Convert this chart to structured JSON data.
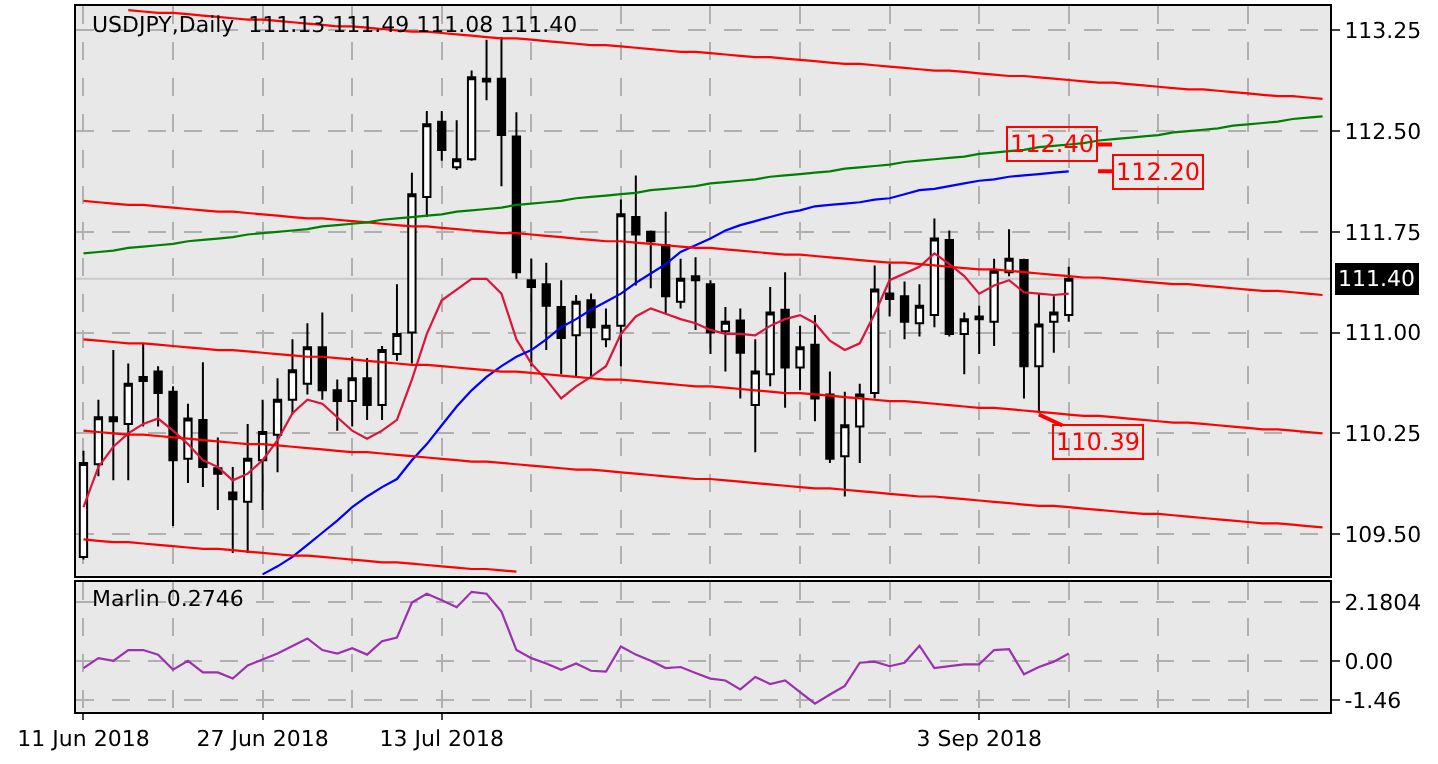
{
  "chart_data": [
    {
      "type": "candlestick",
      "title": "USDJPY,Daily  111.13 111.49 111.08 111.40",
      "categories": [
        "11 Jun 2018",
        null,
        null,
        null,
        null,
        null,
        null,
        null,
        null,
        null,
        null,
        null,
        "27 Jun 2018",
        null,
        null,
        null,
        null,
        null,
        null,
        null,
        null,
        null,
        null,
        null,
        "13 Jul 2018",
        null,
        null,
        null,
        null,
        null,
        null,
        null,
        null,
        null,
        null,
        null,
        null,
        null,
        null,
        null,
        null,
        null,
        null,
        null,
        null,
        null,
        null,
        null,
        null,
        null,
        null,
        null,
        null,
        null,
        null,
        null,
        null,
        null,
        null,
        null,
        "3 Sep 2018",
        null,
        null,
        null,
        null,
        null,
        null,
        null,
        null,
        null,
        null,
        null,
        null,
        null,
        null,
        null,
        null,
        null,
        null,
        null,
        null,
        null,
        null,
        null
      ],
      "ohlc": [
        [
          109.33,
          110.12,
          109.31,
          110.03
        ],
        [
          110.02,
          110.5,
          109.93,
          110.37
        ],
        [
          110.37,
          110.87,
          109.9,
          110.34
        ],
        [
          110.32,
          110.77,
          109.9,
          110.62
        ],
        [
          110.64,
          110.92,
          110.3,
          110.67
        ],
        [
          110.71,
          110.75,
          110.3,
          110.55
        ],
        [
          110.56,
          110.6,
          109.56,
          110.05
        ],
        [
          110.06,
          110.47,
          109.88,
          110.36
        ],
        [
          110.35,
          110.78,
          109.85,
          110.0
        ],
        [
          109.99,
          110.22,
          109.68,
          109.95
        ],
        [
          109.81,
          110.0,
          109.36,
          109.76
        ],
        [
          109.74,
          110.32,
          109.36,
          110.06
        ],
        [
          110.05,
          110.5,
          109.68,
          110.26
        ],
        [
          110.24,
          110.66,
          109.96,
          110.5
        ],
        [
          110.5,
          110.95,
          110.39,
          110.72
        ],
        [
          110.62,
          111.07,
          110.54,
          110.89
        ],
        [
          110.89,
          111.15,
          110.5,
          110.57
        ],
        [
          110.57,
          110.65,
          110.27,
          110.49
        ],
        [
          110.49,
          110.82,
          110.3,
          110.66
        ],
        [
          110.66,
          110.81,
          110.35,
          110.46
        ],
        [
          110.46,
          110.9,
          110.35,
          110.87
        ],
        [
          110.84,
          111.36,
          110.79,
          110.99
        ],
        [
          111.0,
          112.19,
          110.77,
          112.03
        ],
        [
          112.01,
          112.65,
          111.86,
          112.55
        ],
        [
          112.57,
          112.65,
          112.28,
          112.36
        ],
        [
          112.23,
          112.58,
          112.21,
          112.29
        ],
        [
          112.29,
          112.95,
          112.28,
          112.9
        ],
        [
          112.89,
          113.18,
          112.73,
          112.87
        ],
        [
          112.89,
          113.2,
          112.09,
          112.47
        ],
        [
          112.46,
          112.64,
          111.4,
          111.45
        ],
        [
          111.39,
          111.55,
          110.75,
          111.34
        ],
        [
          111.36,
          111.52,
          110.87,
          111.2
        ],
        [
          111.19,
          111.39,
          110.69,
          110.96
        ],
        [
          110.98,
          111.28,
          110.67,
          111.23
        ],
        [
          111.24,
          111.29,
          110.66,
          111.04
        ],
        [
          110.95,
          111.18,
          110.89,
          111.05
        ],
        [
          111.05,
          111.99,
          110.75,
          111.88
        ],
        [
          111.86,
          112.17,
          111.35,
          111.73
        ],
        [
          111.75,
          111.76,
          111.33,
          111.68
        ],
        [
          111.65,
          111.9,
          111.14,
          111.27
        ],
        [
          111.23,
          111.55,
          111.18,
          111.4
        ],
        [
          111.42,
          111.56,
          111.02,
          111.39
        ],
        [
          111.36,
          111.39,
          110.84,
          111.0
        ],
        [
          111.01,
          111.19,
          110.71,
          111.08
        ],
        [
          111.09,
          111.18,
          110.51,
          110.85
        ],
        [
          110.46,
          110.95,
          110.11,
          110.71
        ],
        [
          110.69,
          111.34,
          110.6,
          111.15
        ],
        [
          111.17,
          111.45,
          110.44,
          110.74
        ],
        [
          110.74,
          111.05,
          110.57,
          110.89
        ],
        [
          110.91,
          111.13,
          110.34,
          110.51
        ],
        [
          110.54,
          110.71,
          110.03,
          110.06
        ],
        [
          110.08,
          110.56,
          109.78,
          110.31
        ],
        [
          110.3,
          110.62,
          110.03,
          110.54
        ],
        [
          110.55,
          111.5,
          110.51,
          111.32
        ],
        [
          111.29,
          111.51,
          111.12,
          111.25
        ],
        [
          111.27,
          111.38,
          110.95,
          111.08
        ],
        [
          111.07,
          111.36,
          110.97,
          111.2
        ],
        [
          111.13,
          111.85,
          111.04,
          111.7
        ],
        [
          111.69,
          111.76,
          110.97,
          110.99
        ],
        [
          110.99,
          111.15,
          110.69,
          111.1
        ],
        [
          111.1,
          111.2,
          110.84,
          111.12
        ],
        [
          111.08,
          111.55,
          110.9,
          111.46
        ],
        [
          111.45,
          111.77,
          111.42,
          111.55
        ],
        [
          111.54,
          111.55,
          110.51,
          110.75
        ],
        [
          110.75,
          111.29,
          110.4,
          111.06
        ],
        [
          111.08,
          111.27,
          110.85,
          111.15
        ],
        [
          111.13,
          111.49,
          111.08,
          111.4
        ],
        null,
        null,
        null,
        null,
        null,
        null,
        null,
        null,
        null,
        null,
        null,
        null,
        null,
        null,
        null,
        null,
        null
      ],
      "series": [
        {
          "type": "line",
          "color": "#dc143c",
          "values": [
            109.7,
            110.0,
            110.15,
            110.25,
            110.32,
            110.36,
            110.27,
            110.17,
            110.05,
            110.0,
            109.9,
            109.95,
            110.05,
            110.2,
            110.4,
            110.5,
            110.47,
            110.37,
            110.27,
            110.21,
            110.27,
            110.35,
            110.65,
            110.99,
            111.24,
            111.32,
            111.4,
            111.4,
            111.29,
            110.95,
            110.77,
            110.65,
            110.51,
            110.6,
            110.67,
            110.75,
            110.99,
            111.12,
            111.18,
            111.14,
            111.1,
            111.07,
            111.02,
            110.99,
            110.99,
            110.98,
            111.05,
            111.1,
            111.13,
            111.07,
            110.94,
            110.87,
            110.92,
            111.14,
            111.39,
            111.44,
            111.49,
            111.59,
            111.51,
            111.42,
            111.29,
            111.35,
            111.39,
            111.3,
            111.29,
            111.28,
            111.29,
            null,
            null,
            null,
            null,
            null,
            null,
            null,
            null,
            null,
            null,
            null,
            null,
            null,
            null,
            null,
            null,
            null
          ]
        },
        {
          "type": "line",
          "color": "#0000ff",
          "values": [
            null,
            null,
            null,
            null,
            null,
            null,
            null,
            null,
            null,
            null,
            null,
            null,
            109.2,
            109.26,
            109.33,
            109.42,
            109.51,
            109.6,
            109.7,
            109.78,
            109.85,
            109.91,
            110.05,
            110.17,
            110.31,
            110.45,
            110.57,
            110.67,
            110.75,
            110.82,
            110.87,
            110.95,
            111.04,
            111.1,
            111.17,
            111.23,
            111.29,
            111.37,
            111.44,
            111.51,
            111.6,
            111.65,
            111.7,
            111.76,
            111.8,
            111.83,
            111.86,
            111.89,
            111.91,
            111.94,
            111.95,
            111.96,
            111.97,
            111.99,
            112.0,
            112.03,
            112.06,
            112.07,
            112.09,
            112.11,
            112.13,
            112.14,
            112.16,
            112.17,
            112.18,
            112.19,
            112.2,
            null,
            null,
            null,
            null,
            null,
            null,
            null,
            null,
            null,
            null,
            null,
            null,
            null,
            null,
            null,
            null,
            null
          ]
        },
        {
          "type": "line",
          "color": "#ff0000",
          "values": [
            null,
            null,
            null,
            113.4,
            113.39,
            113.38,
            113.38,
            113.37,
            113.36,
            113.35,
            113.34,
            113.33,
            113.33,
            113.32,
            113.31,
            113.3,
            113.29,
            113.28,
            113.28,
            113.27,
            113.26,
            113.25,
            113.24,
            113.24,
            113.23,
            113.22,
            113.21,
            113.2,
            113.19,
            113.19,
            113.18,
            113.17,
            113.16,
            113.15,
            113.14,
            113.14,
            113.13,
            113.12,
            113.11,
            113.1,
            113.09,
            113.09,
            113.08,
            113.07,
            113.06,
            113.05,
            113.05,
            113.04,
            113.03,
            113.02,
            113.01,
            113.0,
            113.0,
            112.99,
            112.98,
            112.97,
            112.96,
            112.95,
            112.95,
            112.94,
            112.93,
            112.92,
            112.91,
            112.91,
            112.9,
            112.89,
            112.88,
            112.87,
            112.86,
            112.86,
            112.85,
            112.84,
            112.83,
            112.82,
            112.81,
            112.81,
            112.8,
            112.79,
            112.78,
            112.77,
            112.76,
            112.76,
            112.75,
            112.74
          ]
        },
        {
          "type": "line",
          "color": "#ff0000",
          "values": [
            111.98,
            111.97,
            111.96,
            111.95,
            111.95,
            111.94,
            111.93,
            111.92,
            111.91,
            111.9,
            111.9,
            111.89,
            111.88,
            111.87,
            111.86,
            111.85,
            111.85,
            111.84,
            111.83,
            111.82,
            111.81,
            111.8,
            111.79,
            111.79,
            111.78,
            111.77,
            111.76,
            111.75,
            111.74,
            111.74,
            111.73,
            111.72,
            111.71,
            111.7,
            111.69,
            111.68,
            111.68,
            111.67,
            111.66,
            111.65,
            111.64,
            111.63,
            111.63,
            111.62,
            111.61,
            111.6,
            111.59,
            111.58,
            111.58,
            111.57,
            111.56,
            111.55,
            111.54,
            111.53,
            111.52,
            111.52,
            111.51,
            111.5,
            111.49,
            111.48,
            111.47,
            111.47,
            111.46,
            111.45,
            111.44,
            111.43,
            111.42,
            111.41,
            111.41,
            111.4,
            111.39,
            111.38,
            111.37,
            111.36,
            111.36,
            111.35,
            111.34,
            111.33,
            111.32,
            111.31,
            111.31,
            111.3,
            111.29,
            111.28
          ]
        },
        {
          "type": "line",
          "color": "#ff0000",
          "values": [
            110.95,
            110.94,
            110.93,
            110.92,
            110.92,
            110.91,
            110.9,
            110.89,
            110.88,
            110.87,
            110.87,
            110.86,
            110.85,
            110.84,
            110.83,
            110.82,
            110.82,
            110.81,
            110.8,
            110.79,
            110.78,
            110.77,
            110.76,
            110.76,
            110.75,
            110.74,
            110.73,
            110.72,
            110.71,
            110.71,
            110.7,
            110.69,
            110.68,
            110.67,
            110.66,
            110.65,
            110.65,
            110.64,
            110.63,
            110.62,
            110.61,
            110.6,
            110.6,
            110.59,
            110.58,
            110.57,
            110.56,
            110.55,
            110.55,
            110.54,
            110.53,
            110.52,
            110.51,
            110.5,
            110.49,
            110.49,
            110.48,
            110.47,
            110.46,
            110.45,
            110.44,
            110.44,
            110.43,
            110.42,
            110.41,
            110.4,
            110.39,
            110.38,
            110.38,
            110.37,
            110.36,
            110.35,
            110.34,
            110.33,
            110.33,
            110.32,
            110.31,
            110.3,
            110.29,
            110.28,
            110.28,
            110.27,
            110.26,
            110.25
          ]
        },
        {
          "type": "line",
          "color": "#ff0000",
          "values": [
            110.27,
            110.26,
            110.25,
            110.24,
            110.24,
            110.23,
            110.22,
            110.21,
            110.2,
            110.19,
            110.18,
            110.17,
            110.17,
            110.16,
            110.15,
            110.14,
            110.13,
            110.12,
            110.11,
            110.11,
            110.1,
            110.09,
            110.08,
            110.07,
            110.06,
            110.05,
            110.04,
            110.04,
            110.03,
            110.02,
            110.01,
            110.0,
            109.99,
            109.98,
            109.98,
            109.97,
            109.96,
            109.95,
            109.94,
            109.93,
            109.92,
            109.91,
            109.91,
            109.9,
            109.89,
            109.88,
            109.87,
            109.86,
            109.85,
            109.84,
            109.84,
            109.83,
            109.82,
            109.81,
            109.8,
            109.79,
            109.78,
            109.78,
            109.77,
            109.76,
            109.75,
            109.74,
            109.73,
            109.72,
            109.71,
            109.71,
            109.7,
            109.69,
            109.68,
            109.67,
            109.66,
            109.65,
            109.65,
            109.64,
            109.63,
            109.62,
            109.61,
            109.6,
            109.59,
            109.58,
            109.58,
            109.57,
            109.56,
            109.55
          ]
        },
        {
          "type": "line",
          "color": "#ff0000",
          "values": [
            109.46,
            109.45,
            109.44,
            109.44,
            109.43,
            109.42,
            109.41,
            109.4,
            109.39,
            109.39,
            109.38,
            109.37,
            109.36,
            109.35,
            109.34,
            109.34,
            109.33,
            109.32,
            109.31,
            109.3,
            109.29,
            109.29,
            109.28,
            109.27,
            109.26,
            109.25,
            109.24,
            109.24,
            109.23,
            109.22,
            null,
            null,
            null,
            null,
            null,
            null,
            null,
            null,
            null,
            null,
            null,
            null,
            null,
            null,
            null,
            null,
            null,
            null,
            null,
            null,
            null,
            null,
            null,
            null,
            null,
            null,
            null,
            null,
            null,
            null,
            null,
            null,
            null,
            null,
            null,
            null,
            null,
            null,
            null,
            null,
            null,
            null,
            null,
            null,
            null,
            null,
            null,
            null,
            null,
            null,
            null,
            null,
            null,
            null
          ]
        },
        {
          "type": "line",
          "color": "#008000",
          "values": [
            111.59,
            111.6,
            111.61,
            111.63,
            111.64,
            111.65,
            111.66,
            111.68,
            111.69,
            111.7,
            111.71,
            111.73,
            111.74,
            111.75,
            111.76,
            111.77,
            111.79,
            111.8,
            111.81,
            111.82,
            111.84,
            111.85,
            111.86,
            111.87,
            111.88,
            111.9,
            111.91,
            111.92,
            111.93,
            111.95,
            111.96,
            111.97,
            111.98,
            112.0,
            112.01,
            112.02,
            112.03,
            112.04,
            112.06,
            112.07,
            112.08,
            112.09,
            112.11,
            112.12,
            112.13,
            112.14,
            112.16,
            112.17,
            112.18,
            112.19,
            112.2,
            112.22,
            112.23,
            112.24,
            112.25,
            112.27,
            112.28,
            112.29,
            112.3,
            112.31,
            112.33,
            112.34,
            112.35,
            112.36,
            112.38,
            112.39,
            112.4,
            112.41,
            112.43,
            112.44,
            112.45,
            112.46,
            112.47,
            112.49,
            112.5,
            112.51,
            112.52,
            112.54,
            112.55,
            112.56,
            112.57,
            112.59,
            112.6,
            112.61
          ]
        }
      ],
      "ylim": [
        109.19,
        113.43
      ],
      "yticks": [
        113.25,
        {
          "value": 112.5,
          "label": "112.50"
        },
        111.75,
        {
          "value": 111,
          "label": "111.00"
        },
        110.25,
        {
          "value": 109.5,
          "label": "109.50"
        }
      ],
      "grid": true,
      "ref_lines": [
        {
          "axis": "y",
          "value": 111.4,
          "label": "111.40",
          "color": "#c8c8c8"
        }
      ],
      "annotations": [
        {
          "text": "112.40",
          "y": 112.4
        },
        "112.20",
        {
          "text": "110.39",
          "y": 110.39
        }
      ]
    },
    {
      "type": "line",
      "title": "Marlin 0.2746",
      "series": [
        {
          "color": "#9b30b0",
          "values": [
            -0.27,
            0.1,
            0.0,
            0.4,
            0.4,
            0.23,
            -0.33,
            0.0,
            -0.43,
            -0.43,
            -0.66,
            -0.17,
            0.05,
            0.27,
            0.55,
            0.83,
            0.4,
            0.27,
            0.47,
            0.23,
            0.73,
            0.86,
            2.16,
            2.49,
            2.25,
            1.99,
            2.56,
            2.49,
            1.83,
            0.4,
            0.1,
            -0.1,
            -0.33,
            -0.1,
            -0.37,
            -0.4,
            0.53,
            0.23,
            0.0,
            -0.27,
            -0.23,
            -0.45,
            -0.66,
            -0.73,
            -1.06,
            -0.6,
            -0.86,
            -0.73,
            -1.16,
            -1.59,
            -1.25,
            -0.93,
            -0.07,
            -0.03,
            -0.2,
            -0.07,
            0.56,
            -0.27,
            -0.2,
            -0.13,
            -0.13,
            0.4,
            0.43,
            -0.5,
            -0.23,
            -0.03,
            0.27,
            null,
            null,
            null,
            null,
            null,
            null,
            null,
            null,
            null,
            null,
            null,
            null,
            null,
            null,
            null,
            null,
            null
          ]
        }
      ],
      "ylim": [
        -1.89,
        2.92
      ],
      "yticks": [
        2.1804,
        {
          "value": 0,
          "label": "0.00"
        },
        -1.46
      ],
      "grid": true
    }
  ]
}
